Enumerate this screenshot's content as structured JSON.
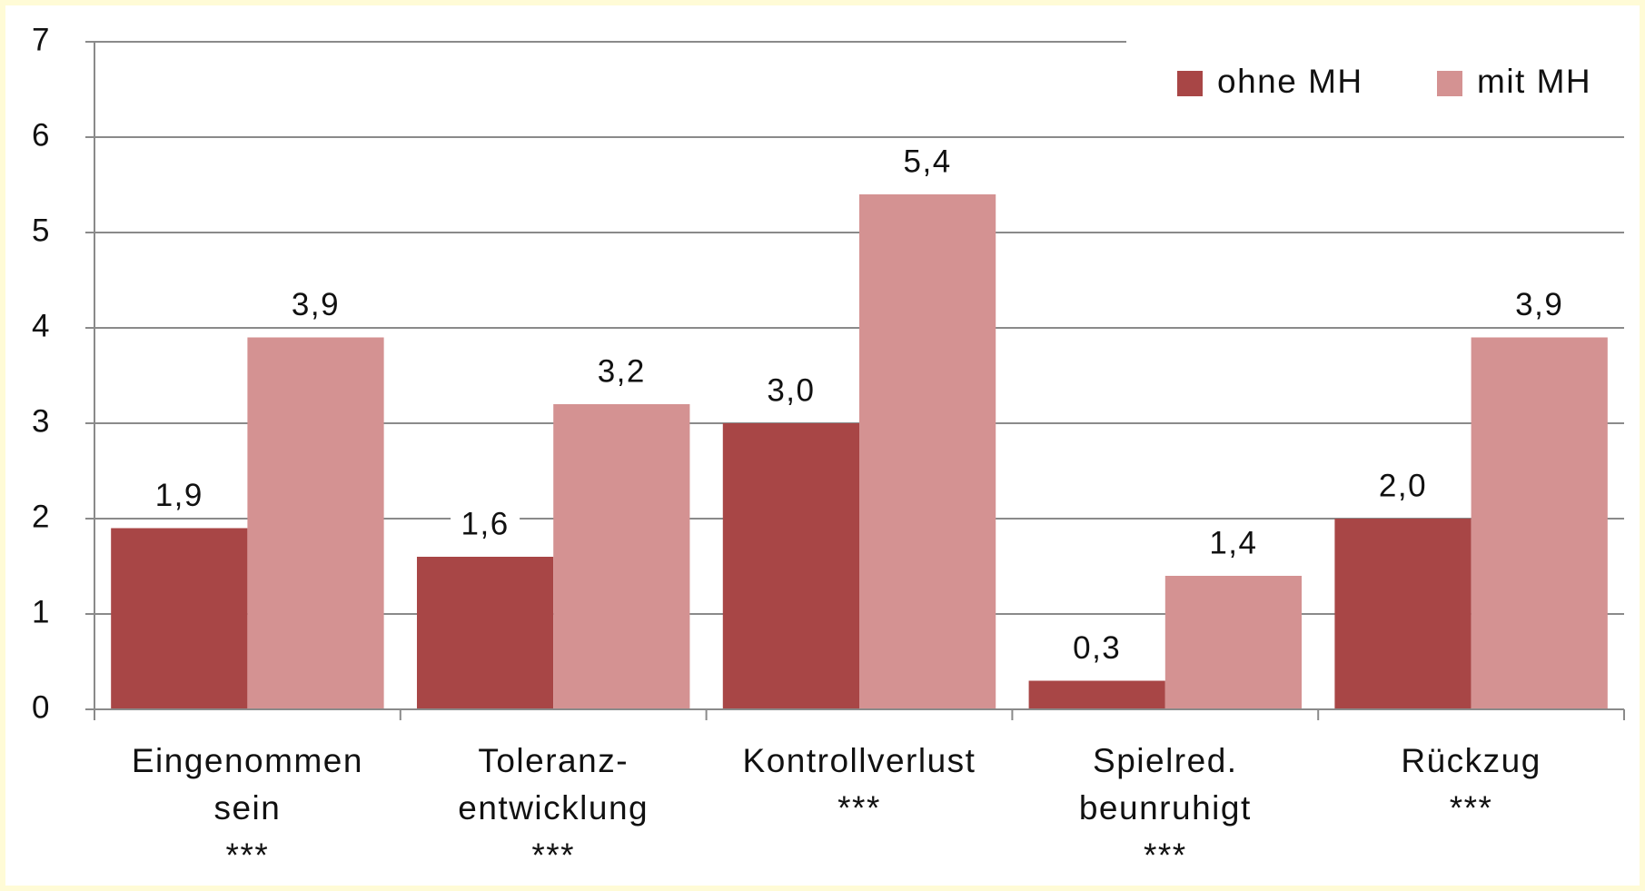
{
  "chart_data": {
    "type": "bar",
    "categories": [
      [
        "Eingenommen",
        "sein",
        "***"
      ],
      [
        "Toleranz-",
        "entwicklung",
        "***"
      ],
      [
        "Kontrollverlust",
        "***"
      ],
      [
        "Spielred.",
        "beunruhigt",
        "***"
      ],
      [
        "Rückzug",
        "***"
      ]
    ],
    "series": [
      {
        "name": "ohne MH",
        "color": "#a84646",
        "values": [
          1.9,
          1.6,
          3.0,
          0.3,
          2.0
        ],
        "value_labels": [
          "1,9",
          "1,6",
          "3,0",
          "0,3",
          "2,0"
        ]
      },
      {
        "name": "mit MH",
        "color": "#d49292",
        "values": [
          3.9,
          3.2,
          5.4,
          1.4,
          3.9
        ],
        "value_labels": [
          "3,9",
          "3,2",
          "5,4",
          "1,4",
          "3,9"
        ]
      }
    ],
    "ylim": [
      0,
      7
    ],
    "yticks": [
      0,
      1,
      2,
      3,
      4,
      5,
      6,
      7
    ],
    "grid": true,
    "legend": "upper right"
  }
}
